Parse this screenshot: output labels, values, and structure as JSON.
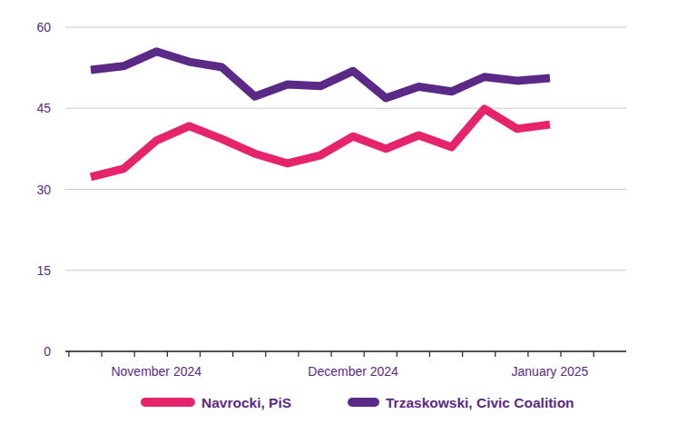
{
  "chart_data": {
    "type": "line",
    "categories": [
      null,
      null,
      "November 2024",
      null,
      null,
      null,
      null,
      null,
      "December 2024",
      null,
      null,
      null,
      null,
      null,
      "January 2025"
    ],
    "series": [
      {
        "name": "Navrocki, PiS",
        "color": "#e6246e",
        "values": [
          32.3,
          33.8,
          39.0,
          41.7,
          39.3,
          36.6,
          34.8,
          36.3,
          39.8,
          37.5,
          40.0,
          37.8,
          44.9,
          41.2,
          42.0
        ]
      },
      {
        "name": "Trzaskowski, Civic Coalition",
        "color": "#5b2a86",
        "values": [
          52.1,
          52.8,
          55.5,
          53.6,
          52.6,
          47.2,
          49.4,
          49.1,
          51.9,
          46.9,
          49.0,
          48.1,
          50.8,
          50.1,
          50.6
        ]
      }
    ],
    "ylim": [
      0,
      60
    ],
    "yticks": [
      0,
      15,
      30,
      45,
      60
    ],
    "grid": true,
    "legend": "bottom"
  }
}
